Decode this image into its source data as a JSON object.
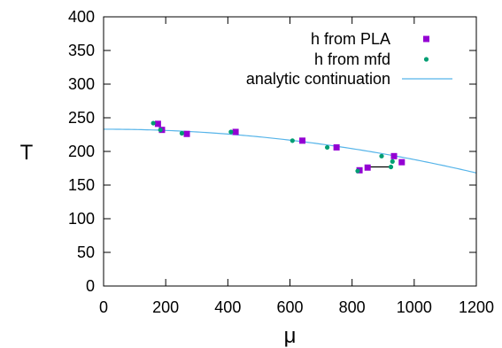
{
  "chart_data": {
    "type": "scatter",
    "title": "",
    "xlabel": "μ",
    "ylabel": "T",
    "xlim": [
      0,
      1200
    ],
    "ylim": [
      0,
      400
    ],
    "x_ticks": [
      "0",
      "200",
      "400",
      "600",
      "800",
      "1000",
      "1200"
    ],
    "y_ticks": [
      "0",
      "50",
      "100",
      "150",
      "200",
      "250",
      "300",
      "350",
      "400"
    ],
    "grid": false,
    "legend_position": "top-right",
    "series": [
      {
        "name": "h from PLA",
        "marker": "square",
        "color": "#9400d3",
        "points": [
          [
            175,
            241
          ],
          [
            188,
            232
          ],
          [
            268,
            226
          ],
          [
            425,
            229
          ],
          [
            640,
            216
          ],
          [
            750,
            206
          ],
          [
            824,
            172
          ],
          [
            850,
            176
          ],
          [
            935,
            193
          ],
          [
            960,
            184
          ]
        ]
      },
      {
        "name": "h from mfd",
        "marker": "circle",
        "color": "#009e73",
        "points": [
          [
            160,
            242
          ],
          [
            183,
            232
          ],
          [
            252,
            227
          ],
          [
            410,
            229
          ],
          [
            608,
            216
          ],
          [
            720,
            206
          ],
          [
            818,
            171
          ],
          [
            895,
            193
          ],
          [
            930,
            185
          ],
          [
            925,
            177
          ]
        ]
      },
      {
        "name": "analytic continuation",
        "marker": "line",
        "color": "#56b4e9",
        "curve": {
          "form": "T = a - b*μ^2",
          "a": 233,
          "b": 4.51e-05
        }
      }
    ],
    "annotations": [
      {
        "type": "segment",
        "from": [
          850,
          177
        ],
        "to": [
          925,
          177
        ],
        "color": "#000000"
      }
    ]
  }
}
